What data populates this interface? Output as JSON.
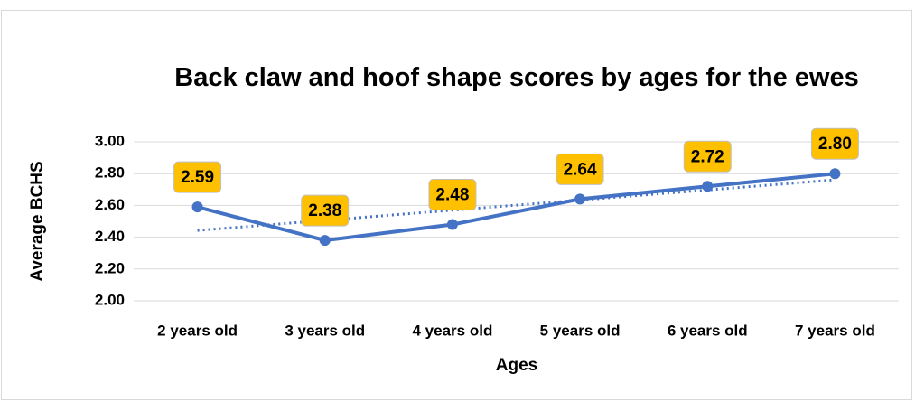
{
  "chart_data": {
    "type": "line",
    "title": "Back claw and hoof shape scores by ages for the ewes",
    "xlabel": "Ages",
    "ylabel": "Average BCHS",
    "categories": [
      "2 years old",
      "3 years old",
      "4 years old",
      "5 years old",
      "6 years old",
      "7 years old"
    ],
    "series": [
      {
        "name": "Average BCHS",
        "color": "#4472c4",
        "values": [
          2.59,
          2.38,
          2.48,
          2.64,
          2.72,
          2.8
        ],
        "value_labels": [
          "2.59",
          "2.38",
          "2.48",
          "2.64",
          "2.72",
          "2.80"
        ]
      }
    ],
    "ylim": [
      2.0,
      3.0
    ],
    "yticks": [
      {
        "value": 2.0,
        "label": "2.00"
      },
      {
        "value": 2.2,
        "label": "2.20"
      },
      {
        "value": 2.4,
        "label": "2.40"
      },
      {
        "value": 2.6,
        "label": "2.60"
      },
      {
        "value": 2.8,
        "label": "2.80"
      },
      {
        "value": 3.0,
        "label": "3.00"
      }
    ],
    "grid": true,
    "trendline": true,
    "label_color": "#ffc000"
  }
}
